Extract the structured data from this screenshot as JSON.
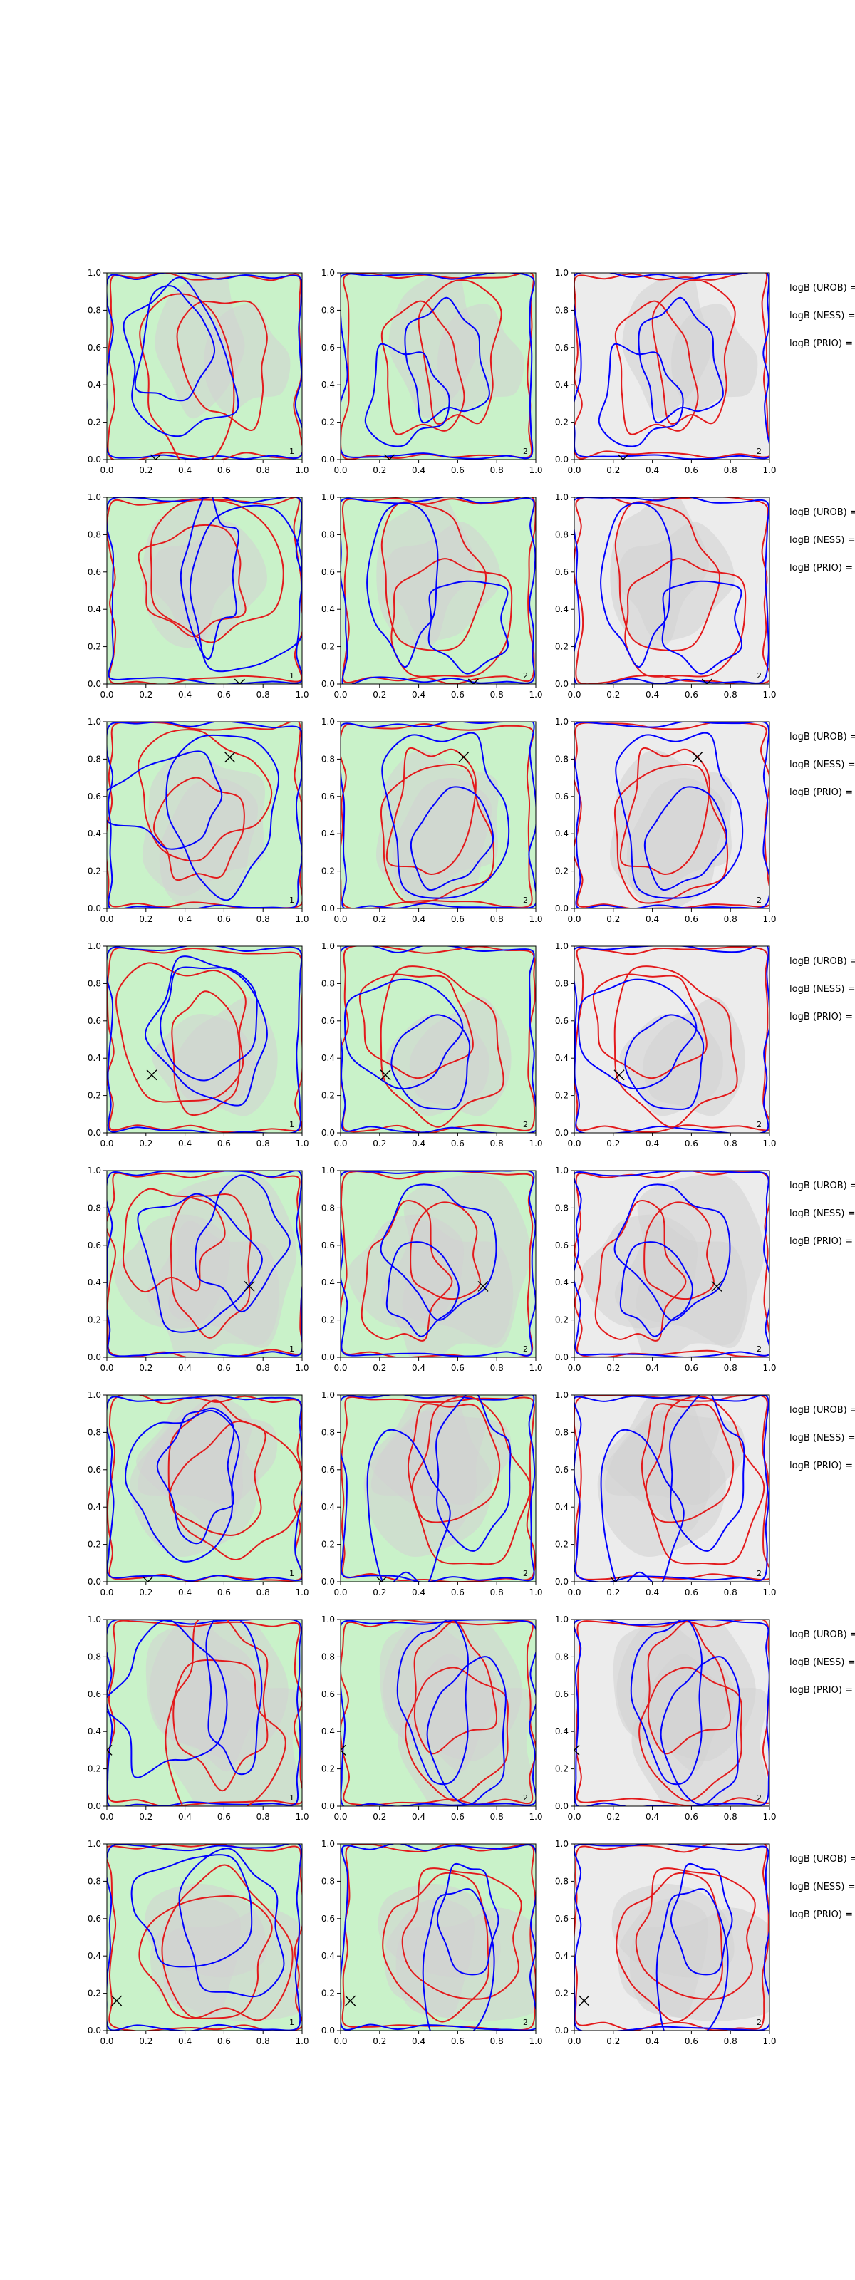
{
  "figure": {
    "ticks": [
      "0.0",
      "0.2",
      "0.4",
      "0.6",
      "0.8",
      "1.0"
    ],
    "annotation_labels": [
      "logB (UROB) =",
      "logB (NESS) =",
      "logB (PRIO) ="
    ],
    "panel_tags": [
      "1",
      "2",
      "2"
    ],
    "colors": {
      "red_curve": "#e31a1c",
      "blue_curve": "#0000ff",
      "green_fill": "#c9f2c9",
      "gray_fill": "#d2d2d2",
      "light_gray_fill": "#ececec",
      "marker": "#000000"
    }
  },
  "chart_data": {
    "type": "contour",
    "rows": 8,
    "cols": 3,
    "xlim": [
      0,
      1
    ],
    "ylim": [
      0,
      1
    ],
    "grid": false,
    "marker_symbol": "x",
    "markers": [
      {
        "x": 0.25,
        "y": 0.0
      },
      {
        "x": 0.68,
        "y": 0.0
      },
      {
        "x": 0.63,
        "y": 0.81
      },
      {
        "x": 0.23,
        "y": 0.31
      },
      {
        "x": 0.73,
        "y": 0.38
      },
      {
        "x": 0.21,
        "y": 0.0
      },
      {
        "x": 0.0,
        "y": 0.3
      },
      {
        "x": 0.05,
        "y": 0.16
      }
    ]
  }
}
